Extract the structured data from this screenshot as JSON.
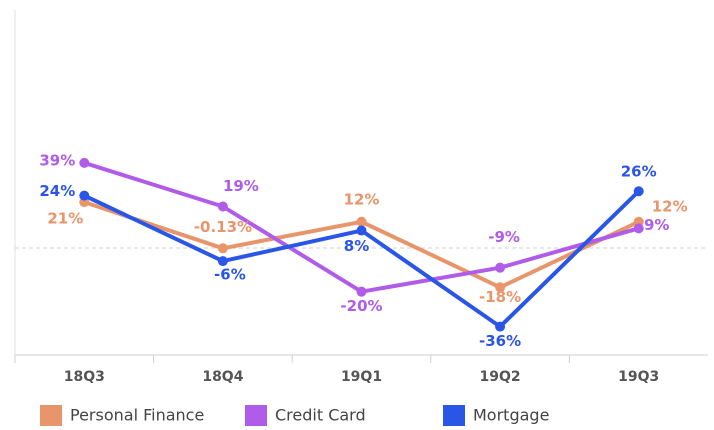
{
  "chart_data": {
    "type": "line",
    "categories": [
      "18Q3",
      "18Q4",
      "19Q1",
      "19Q2",
      "19Q3"
    ],
    "series": [
      {
        "name": "Personal Finance",
        "color": "#e8956b",
        "values": [
          21,
          -0.13,
          12,
          -18,
          12
        ],
        "value_labels": [
          "21%",
          "-0.13%",
          "12%",
          "-18%",
          "12%"
        ]
      },
      {
        "name": "Credit Card",
        "color": "#b05ce8",
        "values": [
          39,
          19,
          -20,
          -9,
          9
        ],
        "value_labels": [
          "39%",
          "19%",
          "-20%",
          "-9%",
          "9%"
        ]
      },
      {
        "name": "Mortgage",
        "color": "#2a56e8",
        "values": [
          24,
          -6,
          8,
          -36,
          26
        ],
        "value_labels": [
          "24%",
          "-6%",
          "8%",
          "-36%",
          "26%"
        ]
      }
    ],
    "ylim": [
      -49,
      109
    ]
  }
}
